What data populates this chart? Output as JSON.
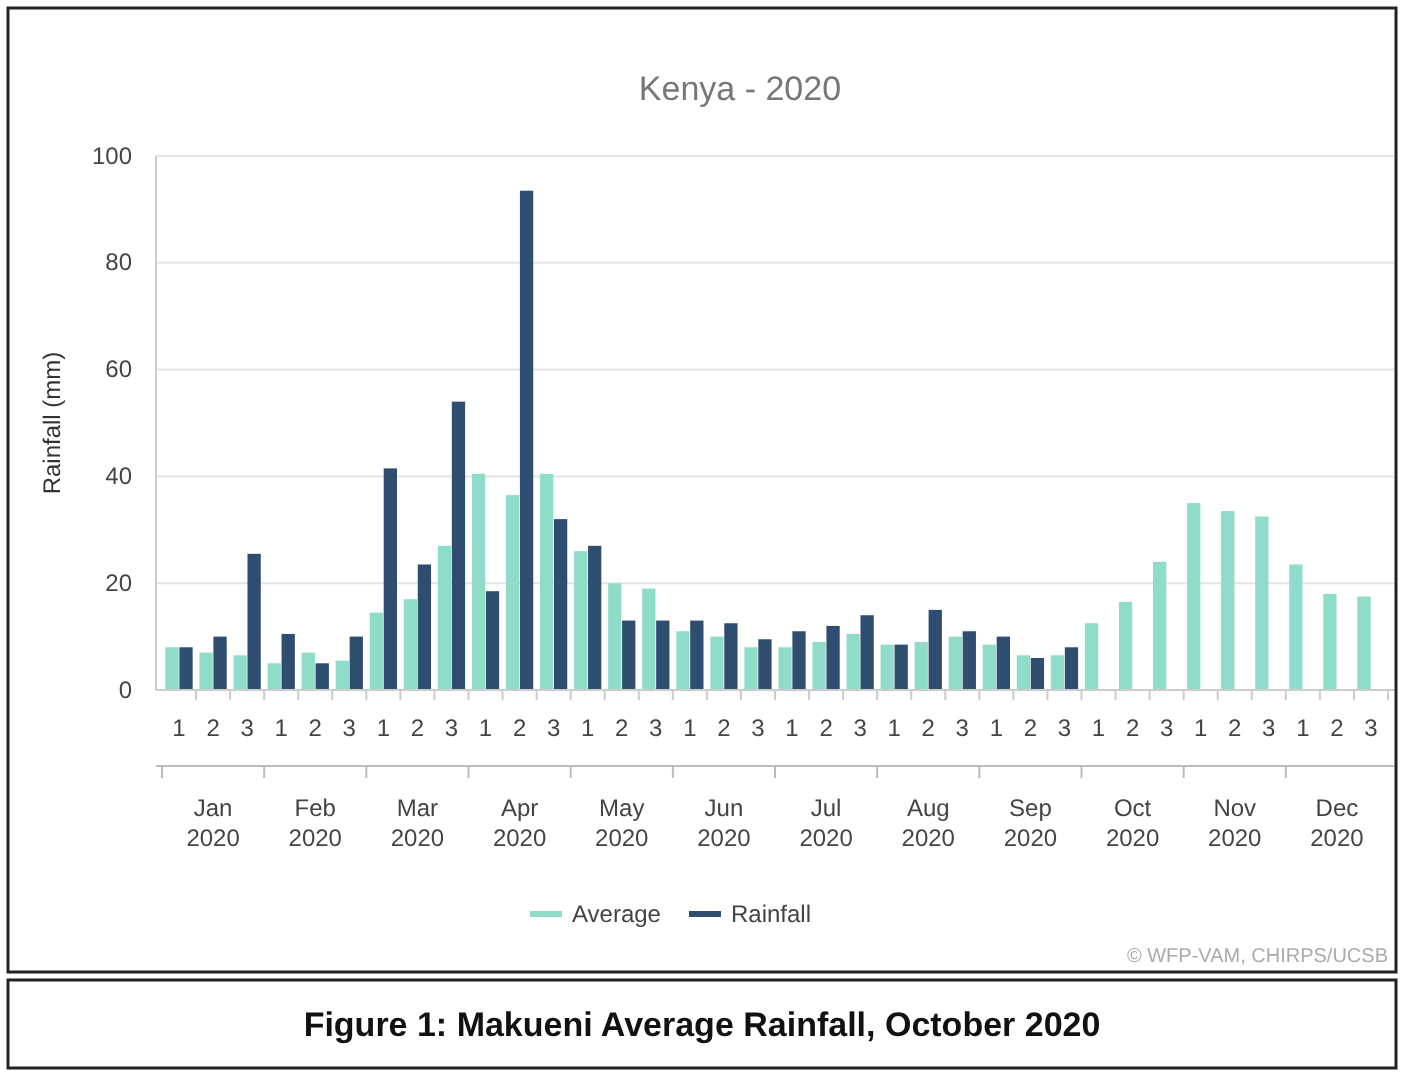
{
  "chart_data": {
    "type": "bar",
    "title": "Kenya - 2020",
    "ylabel": "Rainfall (mm)",
    "categories": [
      "1",
      "2",
      "3",
      "1",
      "2",
      "3",
      "1",
      "2",
      "3",
      "1",
      "2",
      "3",
      "1",
      "2",
      "3",
      "1",
      "2",
      "3",
      "1",
      "2",
      "3",
      "1",
      "2",
      "3",
      "1",
      "2",
      "3",
      "1",
      "2",
      "3",
      "1",
      "2",
      "3",
      "1",
      "2",
      "3"
    ],
    "series": [
      {
        "name": "Average",
        "color": "#8fdcc8",
        "values": [
          8,
          7,
          6.5,
          5,
          7,
          5.5,
          14.5,
          17,
          27,
          40.5,
          36.5,
          40.5,
          26,
          20,
          19,
          11,
          10,
          8,
          8,
          9,
          10.5,
          8.5,
          9,
          10,
          8.5,
          6.5,
          6.5,
          12.5,
          16.5,
          24,
          35,
          33.5,
          32.5,
          23.5,
          18,
          17.5
        ]
      },
      {
        "name": "Rainfall",
        "color": "#2e4d6f",
        "values": [
          8,
          10,
          25.5,
          10.5,
          5,
          10,
          41.5,
          23.5,
          54,
          18.5,
          93.5,
          32,
          27,
          13,
          13,
          13,
          12.5,
          9.5,
          11,
          12,
          14,
          8.5,
          15,
          11,
          10,
          6,
          8,
          null,
          null,
          null,
          null,
          null,
          null,
          null,
          null,
          null
        ]
      }
    ],
    "ylim": [
      0,
      100
    ],
    "yticks": [
      0,
      20,
      40,
      60,
      80,
      100
    ],
    "grid": "y",
    "legend": "bottom",
    "annotations": [
      "Jan 2020",
      "Feb 2020",
      "Mar 2020",
      "Apr 2020",
      "May 2020",
      "Jun 2020",
      "Jul 2020",
      "Aug 2020",
      "Sep 2020",
      "Oct 2020",
      "Nov 2020",
      "Dec 2020",
      "© WFP-VAM, CHIRPS/UCSB",
      "Figure 1: Makueni Average Rainfall, October 2020"
    ]
  }
}
